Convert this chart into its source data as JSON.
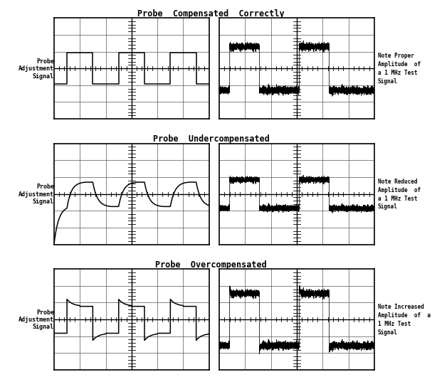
{
  "title1": "Probe  Compensated  Correctly",
  "title2": "Probe  Undercompensated",
  "title3": "Probe  Overcompensated",
  "label_left": "Probe\nAdjustment\nSignal",
  "note1": "Note Proper\nAmplitude  of\na 1 MHz Test\nSignal",
  "note2": "Note Reduced\nAmplitude  of\na 1 MHz Test\nSignal",
  "note3": "Note Increased\nAmplitude  of  a\n1 MHz Test\nSignal",
  "bg_color": "#ffffff",
  "line_color": "#000000",
  "grid_color": "#555555",
  "grid_rows": 6,
  "grid_cols": 6
}
